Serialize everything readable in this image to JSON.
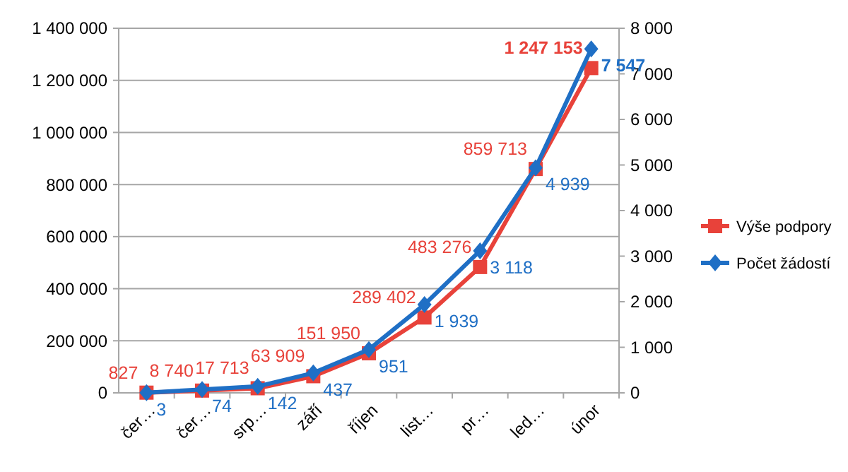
{
  "chart_data": {
    "type": "line",
    "categories": [
      "čer…",
      "čer…",
      "srp…",
      "září",
      "říjen",
      "list…",
      "pr…",
      "led…",
      "únor"
    ],
    "series": [
      {
        "name": "Výše podpory",
        "color": "#e8423a",
        "marker": "square",
        "values": [
          827,
          8740,
          17713,
          63909,
          151950,
          289402,
          483276,
          859713,
          1247153
        ],
        "value_labels": [
          "827",
          "8 740",
          "17 713",
          "63 909",
          "151 950",
          "289 402",
          "483 276",
          "859 713",
          "1 247 153"
        ]
      },
      {
        "name": "Počet žádostí",
        "color": "#1f6fc5",
        "marker": "diamond",
        "axis": "y2",
        "values": [
          3,
          74,
          142,
          437,
          951,
          1939,
          3118,
          4939,
          7547
        ],
        "value_labels": [
          "3",
          "74",
          "142",
          "437",
          "951",
          "1 939",
          "3 118",
          "4 939",
          "7 547"
        ]
      }
    ],
    "ylim": [
      0,
      1400000
    ],
    "yticks": [
      0,
      {
        "value": 200000,
        "label": "200 000"
      },
      {
        "value": 400000,
        "label": "400 000"
      },
      {
        "value": 600000,
        "label": "600 000"
      },
      {
        "value": 800000,
        "label": "800 000"
      },
      {
        "value": 1000000,
        "label": "1 000 000"
      },
      {
        "value": 1200000,
        "label": "1 200 000"
      },
      {
        "value": 1400000,
        "label": "1 400 000"
      }
    ],
    "y2lim": [
      0,
      8000
    ],
    "y2ticks": [
      0,
      {
        "value": 1000,
        "label": "1 000"
      },
      {
        "value": 2000,
        "label": "2 000"
      },
      {
        "value": 3000,
        "label": "3 000"
      },
      {
        "value": 4000,
        "label": "4 000"
      },
      {
        "value": 5000,
        "label": "5 000"
      },
      {
        "value": 6000,
        "label": "6 000"
      },
      {
        "value": 7000,
        "label": "7 000"
      },
      {
        "value": 8000,
        "label": "8 000"
      }
    ],
    "grid": "y",
    "legend": "right"
  }
}
